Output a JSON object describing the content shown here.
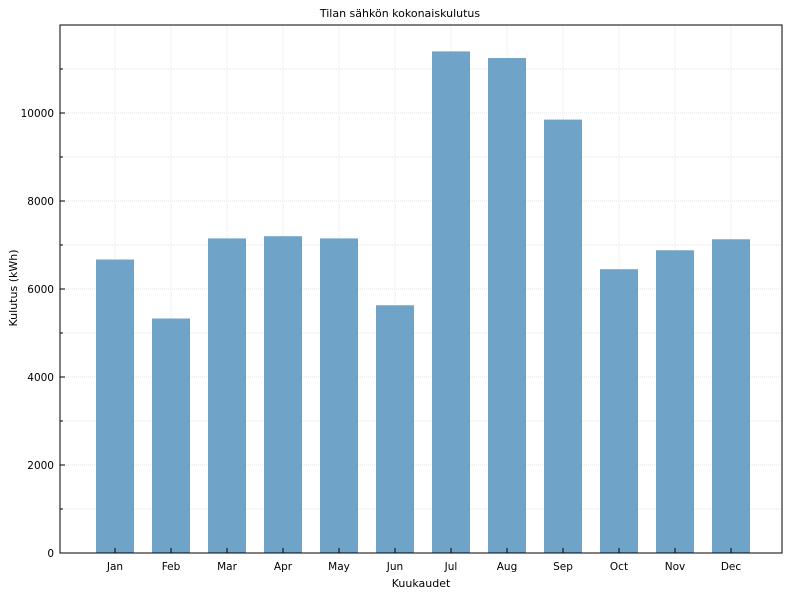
{
  "chart_data": {
    "type": "bar",
    "title": "Tilan sähkön kokonaiskulutus",
    "xlabel": "Kuukaudet",
    "ylabel": "Kulutus (kWh)",
    "categories": [
      "Jan",
      "Feb",
      "Mar",
      "Apr",
      "May",
      "Jun",
      "Jul",
      "Aug",
      "Sep",
      "Oct",
      "Nov",
      "Dec"
    ],
    "values": [
      6670,
      5330,
      7150,
      7200,
      7150,
      5630,
      11400,
      11250,
      9850,
      6450,
      6880,
      7130
    ],
    "ylim": [
      0,
      12000
    ],
    "yticks": [
      0,
      2000,
      4000,
      6000,
      8000,
      10000
    ],
    "bar_color": "#6fa3c8",
    "grid": true
  }
}
